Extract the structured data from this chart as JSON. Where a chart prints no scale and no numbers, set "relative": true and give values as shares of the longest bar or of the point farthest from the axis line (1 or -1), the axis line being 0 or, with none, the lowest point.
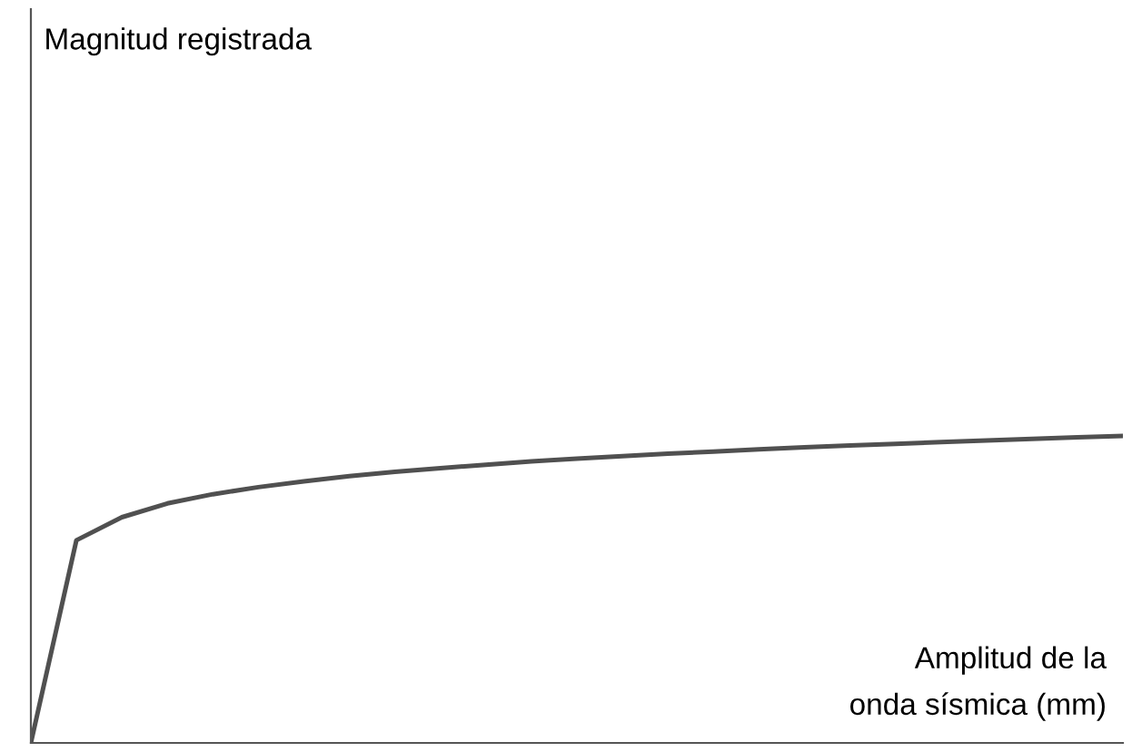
{
  "chart_data": {
    "type": "line",
    "relative": true,
    "annotations": [
      "Magnitud registrada"
    ],
    "xlabel": "Amplitud de la\nonda sísmica (mm)",
    "categories": [
      null,
      null,
      null,
      null,
      null,
      null,
      null,
      null,
      null,
      null,
      null,
      null,
      null,
      null,
      null,
      null,
      null,
      null,
      null,
      null,
      null,
      null,
      null,
      null,
      null
    ],
    "series": [
      {
        "color": "#505050",
        "values": [
          0,
          0.66,
          0.735,
          0.78,
          0.81,
          0.833,
          0.852,
          0.869,
          0.883,
          0.895,
          0.906,
          0.917,
          0.926,
          0.934,
          0.942,
          0.949,
          0.956,
          0.963,
          0.969,
          0.974,
          0.98,
          0.985,
          0.99,
          0.995,
          1.0
        ]
      }
    ],
    "legend": false,
    "marker": "none",
    "line_style": "solid",
    "tick_labels": false
  }
}
